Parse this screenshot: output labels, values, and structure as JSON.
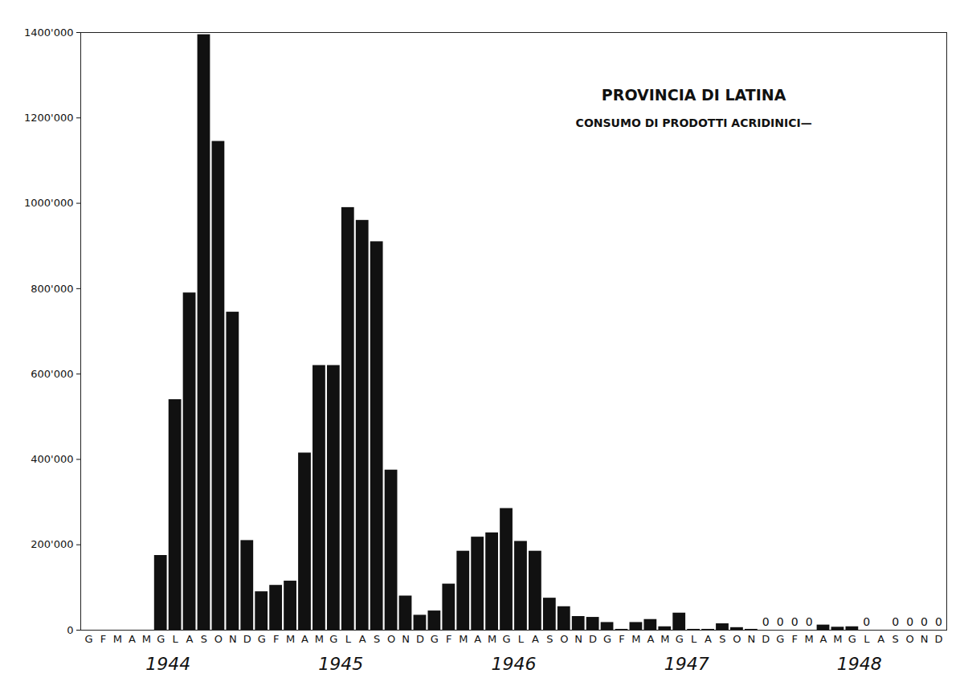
{
  "chart_data": {
    "type": "bar",
    "title": "PROVINCIA DI LATINA",
    "subtitle": "CONSUMO DI PRODOTTI ACRIDINICI—",
    "categories": [
      "G",
      "F",
      "M",
      "A",
      "M",
      "G",
      "L",
      "A",
      "S",
      "O",
      "N",
      "D",
      "G",
      "F",
      "M",
      "A",
      "M",
      "G",
      "L",
      "A",
      "S",
      "O",
      "N",
      "D",
      "G",
      "F",
      "M",
      "A",
      "M",
      "G",
      "L",
      "A",
      "S",
      "O",
      "N",
      "D",
      "G",
      "F",
      "M",
      "A",
      "M",
      "G",
      "L",
      "A",
      "S",
      "O",
      "N",
      "D",
      "G",
      "F",
      "M",
      "A",
      "M",
      "G",
      "L",
      "A",
      "S",
      "O",
      "N",
      "D"
    ],
    "years": [
      "1944",
      "1945",
      "1946",
      "1947",
      "1948"
    ],
    "values": [
      null,
      null,
      null,
      null,
      null,
      175000,
      540000,
      790000,
      1395000,
      1145000,
      745000,
      210000,
      90000,
      105000,
      115000,
      415000,
      620000,
      620000,
      990000,
      960000,
      910000,
      375000,
      80000,
      35000,
      45000,
      108000,
      185000,
      218000,
      228000,
      285000,
      208000,
      185000,
      75000,
      55000,
      32000,
      30000,
      18000,
      2000,
      18000,
      25000,
      8000,
      40000,
      2000,
      2000,
      15000,
      6000,
      2000,
      0,
      0,
      0,
      0,
      12000,
      7000,
      8000,
      0,
      null,
      0,
      0,
      0,
      0
    ],
    "value_labels": [
      null,
      null,
      null,
      null,
      null,
      null,
      null,
      null,
      null,
      null,
      null,
      null,
      null,
      null,
      null,
      null,
      null,
      null,
      null,
      null,
      null,
      null,
      null,
      null,
      null,
      null,
      null,
      null,
      null,
      null,
      null,
      null,
      null,
      null,
      null,
      null,
      null,
      null,
      null,
      null,
      null,
      null,
      null,
      null,
      null,
      null,
      null,
      "0",
      "0",
      "0",
      "0",
      null,
      null,
      null,
      "0",
      null,
      "0",
      "0",
      "0",
      "0"
    ],
    "data_labels": true,
    "color": "#111111",
    "ylim": [
      0,
      1400000
    ],
    "yticks": [
      0,
      {
        "value": 200000,
        "label": "200'000"
      },
      {
        "value": 400000,
        "label": "400'000"
      },
      {
        "value": 600000,
        "label": "600'000"
      },
      {
        "value": 800000,
        "label": "800'000"
      },
      {
        "value": 1000000,
        "label": "1000'000"
      },
      {
        "value": 1200000,
        "label": "1200'000"
      },
      {
        "value": 1400000,
        "label": "1400'000"
      }
    ],
    "grid": false
  }
}
